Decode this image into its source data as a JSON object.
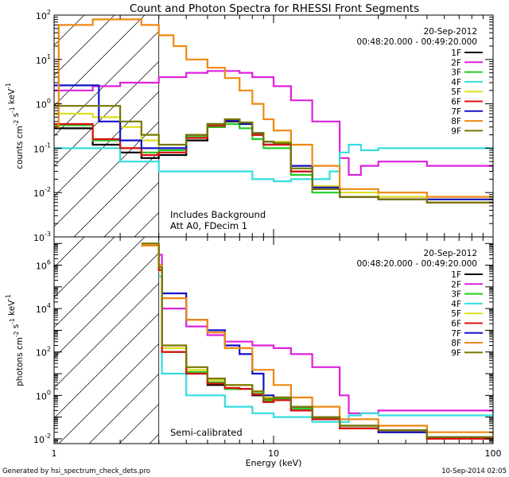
{
  "title": "Count and Photon Spectra for RHESSI Front Segments",
  "footer": {
    "left": "Generated by hsi_spectrum_check_dets.pro",
    "right": "10-Sep-2014 02:05"
  },
  "colors": {
    "1F": "#000000",
    "2F": "#dd22dd",
    "3F": "#22cc22",
    "4F": "#33dddd",
    "5F": "#dddd22",
    "6F": "#dd1111",
    "7F": "#1111cc",
    "8F": "#ee8811",
    "9F": "#777700"
  },
  "chart_data": [
    {
      "type": "line",
      "xscale": "log",
      "yscale": "log",
      "xlim": [
        1,
        100
      ],
      "ylim": [
        0.001,
        100
      ],
      "xticks": [],
      "yticks": [
        "10^-3",
        "10^-2",
        "10^-1",
        "10^0",
        "10^1",
        "10^2"
      ],
      "xlabel": "",
      "ylabel": "counts cm^-2 s^-1 keV^-1",
      "date": "20-Sep-2012",
      "time_range": "00:48:20.000 - 00:49:20.000",
      "annotations": [
        "Includes Background",
        "Att A0, FDecim 1"
      ],
      "hatch_below_keV": 3,
      "legend_position": "top-right",
      "series": [
        {
          "name": "1F",
          "x": [
            1,
            1.5,
            2,
            2.5,
            3,
            4,
            5,
            6,
            7,
            8,
            9,
            10,
            12,
            15,
            20,
            30,
            50,
            100
          ],
          "y": [
            0.28,
            0.12,
            0.08,
            0.06,
            0.07,
            0.15,
            0.3,
            0.4,
            0.35,
            0.2,
            0.12,
            0.12,
            0.03,
            0.012,
            0.008,
            0.007,
            0.006,
            0.006
          ]
        },
        {
          "name": "2F",
          "x": [
            1,
            1.5,
            2,
            3,
            4,
            5,
            6,
            7,
            8,
            10,
            12,
            15,
            20,
            22,
            25,
            30,
            50,
            100
          ],
          "y": [
            2.0,
            2.5,
            3.0,
            4.0,
            5.0,
            5.5,
            5.5,
            5.0,
            4.0,
            2.5,
            1.2,
            0.4,
            0.06,
            0.025,
            0.04,
            0.05,
            0.04,
            0.03
          ]
        },
        {
          "name": "3F",
          "x": [
            1,
            1.5,
            2,
            2.5,
            3,
            4,
            5,
            6,
            7,
            8,
            9,
            10,
            12,
            15,
            20,
            30,
            50,
            100
          ],
          "y": [
            0.33,
            0.15,
            0.1,
            0.08,
            0.09,
            0.18,
            0.3,
            0.35,
            0.28,
            0.16,
            0.1,
            0.1,
            0.025,
            0.01,
            0.008,
            0.007,
            0.006,
            0.006
          ]
        },
        {
          "name": "4F",
          "x": [
            1,
            2,
            3,
            5,
            8,
            10,
            12,
            15,
            18,
            20,
            22,
            25,
            30,
            50,
            70,
            100
          ],
          "y": [
            0.1,
            0.05,
            0.03,
            0.03,
            0.02,
            0.018,
            0.02,
            0.02,
            0.03,
            0.08,
            0.12,
            0.09,
            0.1,
            0.1,
            0.1,
            0.09
          ]
        },
        {
          "name": "5F",
          "x": [
            1,
            1.5,
            2,
            2.5,
            3,
            4,
            5,
            6,
            7,
            8,
            9,
            10,
            12,
            15,
            20,
            30,
            50,
            100
          ],
          "y": [
            0.6,
            0.5,
            0.3,
            0.15,
            0.1,
            0.2,
            0.35,
            0.45,
            0.38,
            0.22,
            0.14,
            0.14,
            0.04,
            0.014,
            0.01,
            0.008,
            0.007,
            0.007
          ]
        },
        {
          "name": "6F",
          "x": [
            1,
            1.5,
            2,
            2.5,
            3,
            4,
            5,
            6,
            7,
            8,
            9,
            10,
            12,
            15,
            20,
            30,
            50,
            100
          ],
          "y": [
            0.35,
            0.16,
            0.1,
            0.07,
            0.08,
            0.17,
            0.32,
            0.42,
            0.36,
            0.2,
            0.12,
            0.12,
            0.03,
            0.012,
            0.008,
            0.007,
            0.006,
            0.006
          ]
        },
        {
          "name": "7F",
          "x": [
            1,
            1.5,
            1.6,
            2,
            2.5,
            3,
            4,
            5,
            6,
            7,
            8,
            9,
            10,
            12,
            15,
            20,
            30,
            50,
            100
          ],
          "y": [
            2.6,
            2.6,
            0.4,
            0.15,
            0.1,
            0.1,
            0.2,
            0.35,
            0.42,
            0.36,
            0.22,
            0.14,
            0.13,
            0.04,
            0.013,
            0.008,
            0.007,
            0.007,
            0.007
          ]
        },
        {
          "name": "8F",
          "x": [
            1,
            1.05,
            1.5,
            2,
            2.5,
            3,
            3.5,
            4,
            5,
            6,
            7,
            8,
            9,
            10,
            12,
            15,
            20,
            30,
            50,
            100
          ],
          "y": [
            0.3,
            60,
            80,
            80,
            60,
            35,
            20,
            10,
            6.5,
            3.8,
            2.0,
            1.0,
            0.45,
            0.25,
            0.12,
            0.04,
            0.012,
            0.01,
            0.008,
            0.008
          ]
        },
        {
          "name": "9F",
          "x": [
            1,
            1.5,
            2,
            2.5,
            3,
            4,
            5,
            6,
            7,
            8,
            9,
            10,
            12,
            15,
            20,
            30,
            50,
            100
          ],
          "y": [
            0.9,
            0.9,
            0.4,
            0.2,
            0.12,
            0.2,
            0.35,
            0.45,
            0.38,
            0.22,
            0.14,
            0.13,
            0.035,
            0.012,
            0.008,
            0.007,
            0.006,
            0.006
          ]
        }
      ]
    },
    {
      "type": "line",
      "xscale": "log",
      "yscale": "log",
      "xlim": [
        1,
        100
      ],
      "ylim": [
        0.006,
        20000000
      ],
      "xticks": [
        "1",
        "10",
        "100"
      ],
      "yticks": [
        "10^-2",
        "10^0",
        "10^2",
        "10^4",
        "10^6"
      ],
      "xlabel": "Energy (keV)",
      "ylabel": "photons cm^-2 s^-1 keV^-1",
      "date": "20-Sep-2012",
      "time_range": "00:48:20.000 - 00:49:20.000",
      "annotations": [
        "Semi-calibrated"
      ],
      "hatch_below_keV": 3,
      "legend_position": "top-right",
      "series": [
        {
          "name": "1F",
          "x": [
            2.5,
            3,
            3.1,
            4,
            5,
            6,
            7,
            8,
            9,
            10,
            12,
            15,
            20,
            30,
            50,
            100
          ],
          "y": [
            8000000,
            600000,
            100,
            10,
            3,
            2,
            2,
            1.0,
            0.5,
            0.6,
            0.2,
            0.08,
            0.03,
            0.02,
            0.01,
            0.008
          ]
        },
        {
          "name": "2F",
          "x": [
            3,
            3.1,
            4,
            5,
            6,
            8,
            10,
            12,
            15,
            20,
            22,
            25,
            30,
            50,
            100
          ],
          "y": [
            3000000,
            10000,
            1500,
            600,
            300,
            200,
            150,
            80,
            20,
            1.0,
            0.15,
            0.15,
            0.2,
            0.2,
            0.15
          ]
        },
        {
          "name": "3F",
          "x": [
            2.5,
            3,
            3.1,
            4,
            5,
            6,
            7,
            8,
            9,
            10,
            12,
            15,
            20,
            30,
            50,
            100
          ],
          "y": [
            8000000,
            600000,
            100,
            12,
            4,
            2,
            2,
            1.2,
            0.6,
            0.7,
            0.25,
            0.09,
            0.03,
            0.02,
            0.01,
            0.008
          ]
        },
        {
          "name": "4F",
          "x": [
            3,
            3.1,
            4,
            6,
            8,
            10,
            15,
            20,
            22,
            25,
            30,
            50,
            100
          ],
          "y": [
            300000,
            10,
            1.0,
            0.3,
            0.15,
            0.1,
            0.06,
            0.06,
            0.12,
            0.15,
            0.12,
            0.12,
            0.15
          ]
        },
        {
          "name": "5F",
          "x": [
            2.5,
            3,
            3.1,
            4,
            5,
            6,
            7,
            8,
            9,
            10,
            12,
            15,
            20,
            30,
            50,
            100
          ],
          "y": [
            8000000,
            600000,
            150,
            15,
            5,
            3,
            3,
            1.6,
            0.8,
            0.8,
            0.3,
            0.1,
            0.04,
            0.025,
            0.012,
            0.01
          ]
        },
        {
          "name": "6F",
          "x": [
            2.5,
            3,
            3.1,
            4,
            5,
            6,
            7,
            8,
            9,
            10,
            12,
            15,
            20,
            30,
            50,
            100
          ],
          "y": [
            8000000,
            600000,
            100,
            10,
            3.5,
            2.2,
            2,
            1.1,
            0.5,
            0.6,
            0.2,
            0.08,
            0.03,
            0.02,
            0.01,
            0.008
          ]
        },
        {
          "name": "7F",
          "x": [
            3,
            3.1,
            4,
            5,
            6,
            7,
            8,
            9,
            10,
            12,
            15,
            20,
            30,
            50,
            100
          ],
          "y": [
            1000000,
            50000,
            3000,
            1000,
            200,
            80,
            10,
            1.0,
            0.8,
            0.3,
            0.1,
            0.04,
            0.02,
            0.012,
            0.01
          ]
        },
        {
          "name": "8F",
          "x": [
            2.5,
            3,
            3.1,
            4,
            5,
            6,
            8,
            10,
            12,
            15,
            20,
            30,
            50,
            100
          ],
          "y": [
            8000000,
            1000000,
            30000,
            3000,
            800,
            150,
            15,
            3,
            0.8,
            0.3,
            0.08,
            0.04,
            0.02,
            0.015
          ]
        },
        {
          "name": "9F",
          "x": [
            2.5,
            3,
            3.1,
            4,
            5,
            6,
            7,
            8,
            9,
            10,
            12,
            15,
            20,
            30,
            50,
            100
          ],
          "y": [
            10000000,
            800000,
            200,
            20,
            6,
            3,
            3,
            1.5,
            0.7,
            0.8,
            0.3,
            0.1,
            0.04,
            0.025,
            0.012,
            0.01
          ]
        }
      ]
    }
  ]
}
